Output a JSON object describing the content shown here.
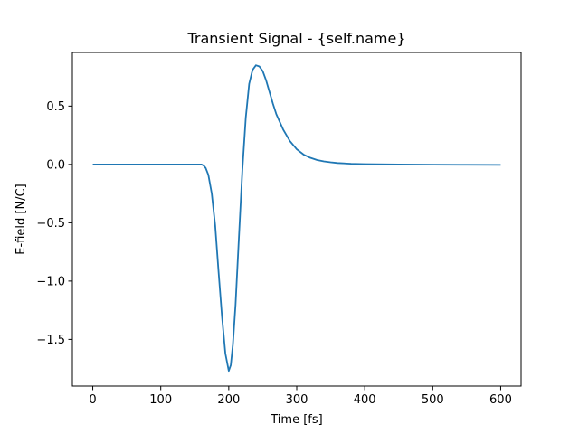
{
  "chart_data": {
    "type": "line",
    "title": "Transient Signal - {self.name}",
    "xlabel": "Time [fs]",
    "ylabel": "E-field [N/C]",
    "xlim": [
      -30,
      630
    ],
    "ylim": [
      -1.9,
      0.96
    ],
    "x_ticks": [
      0,
      100,
      200,
      300,
      400,
      500,
      600
    ],
    "x_tick_labels": [
      "0",
      "100",
      "200",
      "300",
      "400",
      "500",
      "600"
    ],
    "y_ticks": [
      -1.5,
      -1.0,
      -0.5,
      0.0,
      0.5
    ],
    "y_tick_labels": [
      "−1.5",
      "−1.0",
      "−0.5",
      "0.0",
      "0.5"
    ],
    "grid": false,
    "line_color": "#1f77b4",
    "series": [
      {
        "x": [
          0,
          50,
          100,
          140,
          150,
          155,
          160,
          163,
          166,
          170,
          175,
          180,
          185,
          190,
          195,
          200,
          203,
          206,
          210,
          215,
          220,
          225,
          230,
          235,
          240,
          245,
          250,
          255,
          260,
          265,
          270,
          280,
          290,
          300,
          310,
          320,
          330,
          340,
          350,
          360,
          380,
          400,
          450,
          500,
          550,
          600
        ],
        "y": [
          0.0,
          0.0,
          0.0,
          0.0,
          0.0,
          0.0,
          0.0,
          -0.01,
          -0.03,
          -0.09,
          -0.25,
          -0.52,
          -0.92,
          -1.3,
          -1.62,
          -1.77,
          -1.72,
          -1.55,
          -1.2,
          -0.62,
          -0.05,
          0.4,
          0.69,
          0.81,
          0.85,
          0.84,
          0.8,
          0.72,
          0.62,
          0.52,
          0.43,
          0.3,
          0.2,
          0.13,
          0.085,
          0.057,
          0.038,
          0.026,
          0.018,
          0.012,
          0.006,
          0.003,
          0.0,
          -0.002,
          -0.003,
          -0.004
        ]
      }
    ]
  }
}
